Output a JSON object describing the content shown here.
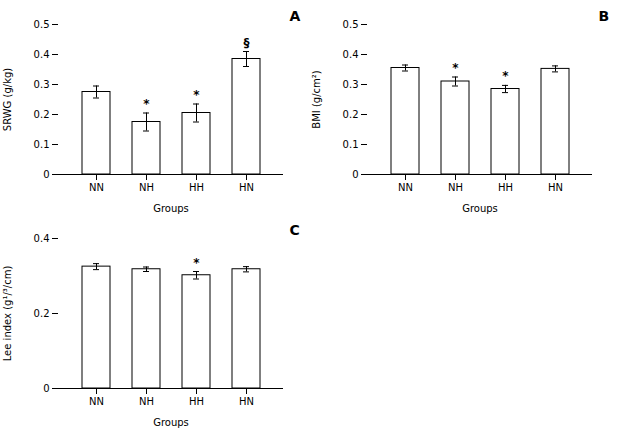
{
  "chart_data": [
    {
      "type": "bar",
      "title": "A",
      "categories": [
        "NN",
        "NH",
        "HH",
        "HN"
      ],
      "values": [
        0.275,
        0.175,
        0.205,
        0.385
      ],
      "errors": [
        0.02,
        0.03,
        0.03,
        0.025
      ],
      "xlabel": "Groups",
      "ylabel": "SRWG (g/kg)",
      "ylim": [
        0,
        0.5
      ],
      "yticks": [
        0,
        0.1,
        0.2,
        0.3,
        0.4,
        0.5
      ],
      "color": "#ffffff",
      "annotations": [
        {
          "category": "NH",
          "text": "*"
        },
        {
          "category": "HH",
          "text": "*"
        },
        {
          "category": "HN",
          "text": "§"
        }
      ]
    },
    {
      "type": "bar",
      "title": "B",
      "categories": [
        "NN",
        "NH",
        "HH",
        "HN"
      ],
      "values": [
        0.355,
        0.31,
        0.285,
        0.352
      ],
      "errors": [
        0.01,
        0.015,
        0.012,
        0.01
      ],
      "xlabel": "Groups",
      "ylabel": "BMI (g/cm²)",
      "ylim": [
        0,
        0.5
      ],
      "yticks": [
        0,
        0.1,
        0.2,
        0.3,
        0.4,
        0.5
      ],
      "color": "#ffffff",
      "annotations": [
        {
          "category": "NH",
          "text": "*"
        },
        {
          "category": "HH",
          "text": "*"
        }
      ]
    },
    {
      "type": "bar",
      "title": "C",
      "categories": [
        "NN",
        "NH",
        "HH",
        "HN"
      ],
      "values": [
        0.325,
        0.318,
        0.302,
        0.318
      ],
      "errors": [
        0.008,
        0.006,
        0.01,
        0.007
      ],
      "xlabel": "Groups",
      "ylabel": "Lee index (g¹/³/cm)",
      "ylim": [
        0,
        0.4
      ],
      "yticks": [
        0,
        0.2,
        0.4
      ],
      "color": "#ffffff",
      "annotations": [
        {
          "category": "HH",
          "text": "*"
        }
      ]
    }
  ]
}
